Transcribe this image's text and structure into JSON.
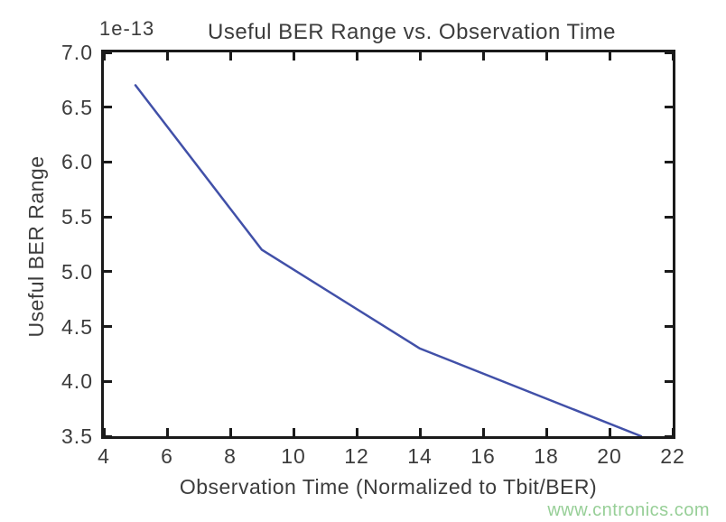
{
  "chart_data": {
    "type": "line",
    "title": "Useful BER Range vs. Observation Time",
    "xlabel": "Observation Time (Normalized to Tbit/BER)",
    "ylabel": "Useful BER Range",
    "y_offset_label": "1e-13",
    "x": [
      5,
      9,
      14,
      21
    ],
    "y": [
      6.7,
      5.2,
      4.3,
      3.5
    ],
    "y_unit_multiplier": "1e-13",
    "xlim": [
      4,
      22
    ],
    "ylim": [
      3.5,
      7.0
    ],
    "x_ticks": [
      4,
      6,
      8,
      10,
      12,
      14,
      16,
      18,
      20,
      22
    ],
    "x_tick_labels": [
      "4",
      "6",
      "8",
      "10",
      "12",
      "14",
      "16",
      "18",
      "20",
      "22"
    ],
    "y_ticks": [
      7.0,
      6.5,
      6.0,
      5.5,
      5.0,
      4.5,
      4.0,
      3.5
    ],
    "y_tick_labels": [
      "7.0",
      "6.5",
      "6.0",
      "5.5",
      "5.0",
      "4.5",
      "4.0",
      "3.5"
    ],
    "grid": false,
    "legend_position": "none",
    "line_color": "#4150a8",
    "axis_color": "#1a1a1a",
    "text_color": "#3c3c3c"
  },
  "watermark": {
    "text": "www.cntronics.com",
    "color": "#97cf97"
  }
}
